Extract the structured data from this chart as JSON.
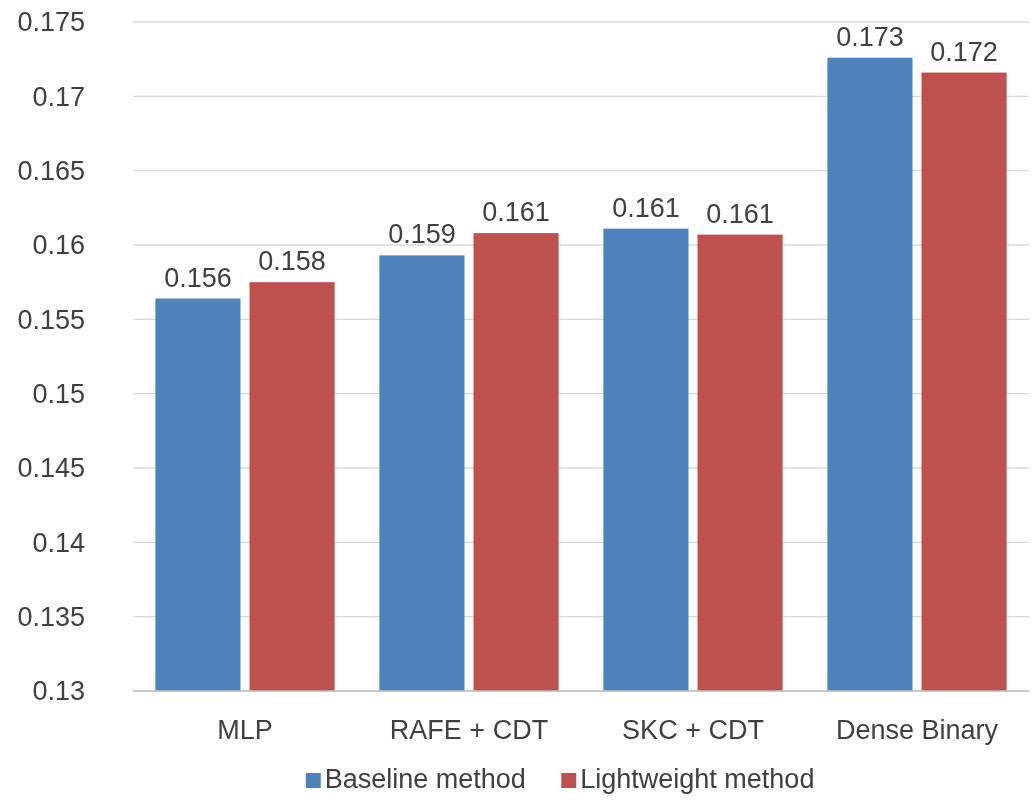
{
  "chart_data": {
    "type": "bar",
    "categories": [
      "MLP",
      "RAFE + CDT",
      "SKC + CDT",
      "Dense Binary"
    ],
    "series": [
      {
        "name": "Baseline method",
        "color": "#4f81bd",
        "values": [
          0.1564,
          0.1593,
          0.1611,
          0.1726
        ],
        "value_labels": [
          "0.156",
          "0.159",
          "0.161",
          "0.173"
        ]
      },
      {
        "name": "Lightweight method",
        "color": "#c0504d",
        "values": [
          0.1575,
          0.1608,
          0.1607,
          0.1716
        ],
        "value_labels": [
          "0.158",
          "0.161",
          "0.161",
          "0.172"
        ]
      }
    ],
    "ylim": [
      0.13,
      0.175
    ],
    "yticks": [
      0.13,
      0.135,
      0.14,
      0.145,
      0.15,
      0.155,
      0.16,
      0.165,
      0.17,
      0.175
    ],
    "grid": "y",
    "legend": "bottom"
  }
}
